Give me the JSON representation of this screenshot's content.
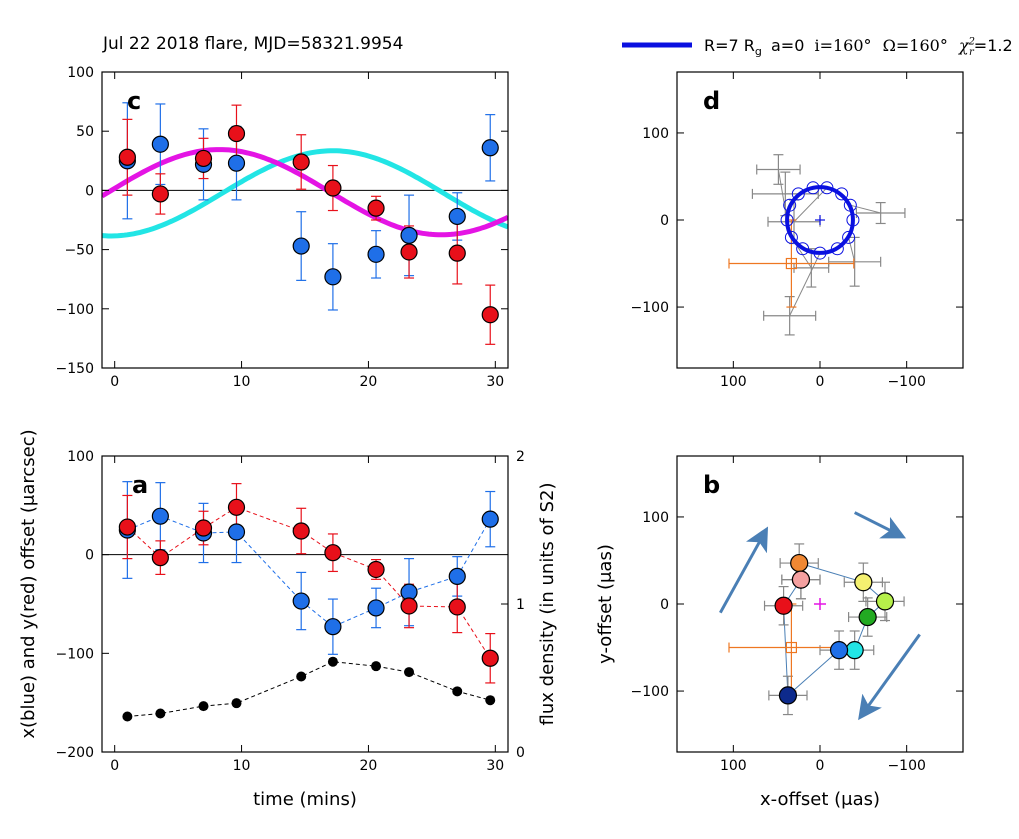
{
  "figure": {
    "title": "Jul 22 2018 flare, MJD=58321.9954",
    "legend": {
      "label": "R=7 R_g a=0 i=160° Ω=160° χ²_r =1.2",
      "label_parts": {
        "r": "R=7 R",
        "rsub": "g",
        "a": "a=0",
        "i": "i=160°",
        "omega": "Ω=160°",
        "chi": "χ",
        "chi_sup": "2",
        "chi_sub": "r",
        "chi_val": "=1.2"
      },
      "color": "#0a10e0"
    },
    "colors": {
      "blue": "#1f6fe8",
      "red": "#e8101a",
      "cyan": "#22e5e5",
      "magenta": "#e414e4",
      "black": "#000000",
      "orange": "#ee7722",
      "gray": "#888888",
      "arrow": "#4a7fb5"
    }
  },
  "chart_data": [
    {
      "panel": "c",
      "type": "scatter",
      "panel_label": "c",
      "xlim": [
        -1,
        31
      ],
      "ylim": [
        -150,
        100
      ],
      "xticks": [
        0,
        10,
        20,
        30
      ],
      "yticks": [
        -150,
        -100,
        -50,
        0,
        50,
        100
      ],
      "xlabel": "",
      "ylabel": "",
      "series": [
        {
          "name": "x (blue)",
          "x": [
            1,
            3.6,
            7,
            9.6,
            14.7,
            17.2,
            20.6,
            23.2,
            27,
            29.6
          ],
          "y": [
            25,
            39,
            22,
            23,
            -47,
            -73,
            -54,
            -38,
            -22,
            36
          ],
          "yerr": [
            49,
            34,
            30,
            31,
            29,
            28,
            20,
            34,
            20,
            28
          ]
        },
        {
          "name": "y (red)",
          "x": [
            1,
            3.6,
            7,
            9.6,
            14.7,
            17.2,
            20.6,
            23.2,
            27,
            29.6
          ],
          "y": [
            28,
            -3,
            27,
            48,
            24,
            2,
            -15,
            -52,
            -53,
            -105
          ],
          "yerr": [
            32,
            17,
            17,
            24,
            23,
            19,
            10,
            22,
            26,
            25
          ]
        },
        {
          "name": "model x (cyan)",
          "function": "sine",
          "amplitude": 36,
          "center": 17.2,
          "period": 35,
          "offset": -2.5
        },
        {
          "name": "model y (magenta)",
          "function": "sine",
          "amplitude": 36,
          "center": 8.25,
          "period": 35,
          "offset": -1.5
        }
      ]
    },
    {
      "panel": "a",
      "type": "line",
      "panel_label": "a",
      "xlim": [
        -1,
        31
      ],
      "ylim": [
        -200,
        100
      ],
      "xticks": [
        0,
        10,
        20,
        30
      ],
      "yticks": [
        -200,
        -100,
        0,
        100
      ],
      "y2lim": [
        0,
        2
      ],
      "y2ticks": [
        0,
        1,
        2
      ],
      "xlabel": "time (mins)",
      "ylabel": "x(blue) and y(red) offset (μarcsec)",
      "y2label": "flux density (in units of S2)",
      "series": [
        {
          "name": "x (blue)",
          "x": [
            1,
            3.6,
            7,
            9.6,
            14.7,
            17.2,
            20.6,
            23.2,
            27,
            29.6
          ],
          "y": [
            25,
            39,
            22,
            23,
            -47,
            -73,
            -54,
            -38,
            -22,
            36
          ],
          "yerr": [
            49,
            34,
            30,
            31,
            29,
            28,
            20,
            34,
            20,
            28
          ]
        },
        {
          "name": "y (red)",
          "x": [
            1,
            3.6,
            7,
            9.6,
            14.7,
            17.2,
            20.6,
            23.2,
            27,
            29.6
          ],
          "y": [
            28,
            -3,
            27,
            48,
            24,
            2,
            -15,
            -52,
            -53,
            -105
          ],
          "yerr": [
            32,
            17,
            17,
            24,
            23,
            19,
            10,
            22,
            26,
            25
          ]
        },
        {
          "name": "flux (black)",
          "axis": "right",
          "x": [
            1,
            3.6,
            7,
            9.6,
            14.7,
            17.2,
            20.6,
            23.2,
            27,
            29.6
          ],
          "y": [
            0.24,
            0.26,
            0.31,
            0.33,
            0.51,
            0.61,
            0.58,
            0.54,
            0.41,
            0.35
          ]
        }
      ]
    },
    {
      "panel": "d",
      "type": "scatter",
      "panel_label": "d",
      "xlim": [
        165,
        -165
      ],
      "ylim": [
        -170,
        170
      ],
      "xticks": [
        100,
        0,
        -100
      ],
      "yticks": [
        -100,
        0,
        100
      ],
      "model_orbit": {
        "center": [
          0,
          0
        ],
        "radius": 38
      },
      "orbit_points": [
        [
          38,
          0
        ],
        [
          35,
          17
        ],
        [
          25,
          30
        ],
        [
          8,
          37
        ],
        [
          -8,
          37
        ],
        [
          -25,
          30
        ],
        [
          -35,
          17
        ],
        [
          -38,
          0
        ],
        [
          -33,
          -20
        ],
        [
          -20,
          -33
        ],
        [
          0,
          -38
        ],
        [
          20,
          -33
        ],
        [
          33,
          -20
        ]
      ],
      "gray_points": [
        {
          "x": 48,
          "y": 58,
          "xerr": 25,
          "yerr": 17
        },
        {
          "x": 40,
          "y": 30,
          "xerr": 38,
          "yerr": 25
        },
        {
          "x": 30,
          "y": -2,
          "xerr": 30,
          "yerr": 25
        },
        {
          "x": -70,
          "y": 8,
          "xerr": 28,
          "yerr": 12
        },
        {
          "x": -40,
          "y": -48,
          "xerr": 30,
          "yerr": 28
        },
        {
          "x": 35,
          "y": -110,
          "xerr": 30,
          "yerr": 22
        },
        {
          "x": 10,
          "y": -55,
          "xerr": 20,
          "yerr": 22
        }
      ],
      "s2_position": {
        "x": 33,
        "y": -50,
        "xerr": 72,
        "yerr": 50
      },
      "center_marker": [
        0,
        0
      ]
    },
    {
      "panel": "b",
      "type": "scatter",
      "panel_label": "b",
      "xlim": [
        165,
        -165
      ],
      "ylim": [
        -170,
        170
      ],
      "xticks": [
        100,
        0,
        -100
      ],
      "yticks": [
        -100,
        0,
        100
      ],
      "xlabel": "x-offset (μas)",
      "ylabel": "y-offset (μas)",
      "points": [
        {
          "x": 37,
          "y": -105,
          "color": "#0d2a8c"
        },
        {
          "x": 42,
          "y": -2,
          "color": "#e8101a"
        },
        {
          "x": 22,
          "y": 28,
          "color": "#c0181e"
        },
        {
          "x": 24,
          "y": 47,
          "color": "#f08833"
        },
        {
          "x": 22,
          "y": 28,
          "color": "#f4a0a0"
        },
        {
          "x": -50,
          "y": 25,
          "color": "#f4f070"
        },
        {
          "x": -75,
          "y": 3,
          "color": "#b6f04a"
        },
        {
          "x": -55,
          "y": -15,
          "color": "#22aa22"
        },
        {
          "x": -40,
          "y": -53,
          "color": "#22e5e5"
        },
        {
          "x": -22,
          "y": -53,
          "color": "#1f6fe8"
        }
      ],
      "s2_position": {
        "x": 33,
        "y": -50,
        "xerr": 72,
        "yerr": 50
      },
      "center_marker": [
        0,
        0
      ],
      "arrows": [
        {
          "from": [
            115,
            -10
          ],
          "to": [
            65,
            80
          ]
        },
        {
          "from": [
            -40,
            105
          ],
          "to": [
            -90,
            80
          ]
        },
        {
          "from": [
            -115,
            -35
          ],
          "to": [
            -50,
            -125
          ]
        }
      ]
    }
  ]
}
